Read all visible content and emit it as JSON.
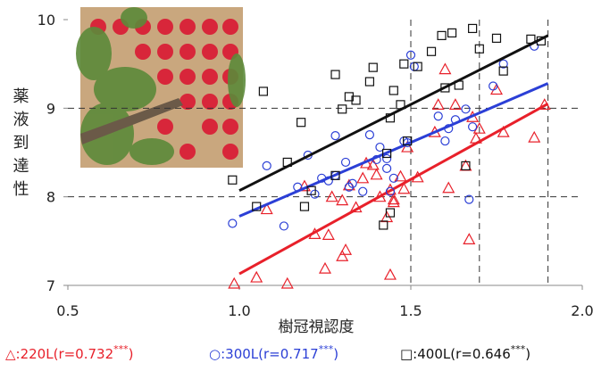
{
  "chart_data": {
    "type": "scatter",
    "x_label": "樹冠視認度",
    "y_label": "薬液到達性",
    "xlim": [
      0.5,
      2.0
    ],
    "xticks": [
      {
        "value": 0.5,
        "label": "0.5"
      },
      {
        "value": 1,
        "label": "1.0"
      },
      {
        "value": 1.5,
        "label": "1.5"
      },
      {
        "value": 2,
        "label": "2.0"
      }
    ],
    "ylim": [
      7,
      10
    ],
    "yticks": [
      7,
      8,
      9,
      10
    ],
    "ref_x": [
      1.5,
      1.7,
      1.9
    ],
    "ref_y": [
      8,
      9
    ],
    "series": [
      {
        "name": "220L",
        "marker": "triangle",
        "color": "#e8202a",
        "legend_symbol": "△:",
        "stat_label": "(r=0.732",
        "significance": "***",
        "close": ")",
        "fit": {
          "x": [
            1.0,
            1.9
          ],
          "values": [
            7.13,
            9.05
          ]
        },
        "x": [
          0.985,
          1.05,
          1.08,
          1.14,
          1.19,
          1.22,
          1.26,
          1.25,
          1.3,
          1.31,
          1.27,
          1.3,
          1.32,
          1.34,
          1.36,
          1.37,
          1.39,
          1.4,
          1.41,
          1.43,
          1.44,
          1.44,
          1.45,
          1.45,
          1.47,
          1.48,
          1.49,
          1.52,
          1.57,
          1.58,
          1.6,
          1.61,
          1.63,
          1.66,
          1.67,
          1.68,
          1.69,
          1.7,
          1.75,
          1.77,
          1.86,
          1.89
        ],
        "values": [
          7.02,
          7.09,
          7.86,
          7.02,
          8.12,
          7.58,
          7.57,
          7.19,
          7.33,
          7.4,
          8.0,
          7.96,
          8.13,
          7.88,
          8.21,
          8.38,
          8.36,
          8.25,
          8.0,
          7.77,
          8.08,
          7.12,
          7.94,
          7.97,
          8.23,
          8.09,
          8.56,
          8.22,
          8.73,
          9.04,
          9.44,
          8.1,
          9.04,
          8.35,
          7.52,
          8.9,
          8.66,
          8.77,
          9.21,
          8.73,
          8.67,
          9.04
        ]
      },
      {
        "name": "300L",
        "marker": "circle",
        "color": "#2b3fd6",
        "legend_symbol": "○:",
        "stat_label": "(r=0.717",
        "significance": "***",
        "close": ")",
        "fit": {
          "x": [
            1.0,
            1.9
          ],
          "values": [
            7.78,
            9.28
          ]
        },
        "x": [
          0.98,
          1.08,
          1.13,
          1.17,
          1.2,
          1.22,
          1.24,
          1.26,
          1.28,
          1.28,
          1.31,
          1.32,
          1.33,
          1.36,
          1.38,
          1.4,
          1.41,
          1.43,
          1.43,
          1.44,
          1.45,
          1.48,
          1.49,
          1.5,
          1.51,
          1.58,
          1.6,
          1.61,
          1.63,
          1.66,
          1.67,
          1.68,
          1.74,
          1.77,
          1.86
        ],
        "values": [
          7.7,
          8.35,
          7.67,
          8.11,
          8.47,
          8.03,
          8.21,
          8.18,
          8.24,
          8.69,
          8.39,
          8.11,
          8.15,
          8.06,
          8.7,
          8.42,
          8.56,
          8.32,
          8.43,
          8.06,
          8.21,
          8.63,
          8.61,
          9.6,
          9.47,
          8.91,
          8.63,
          8.77,
          8.87,
          8.99,
          7.97,
          8.79,
          9.25,
          9.5,
          9.7
        ]
      },
      {
        "name": "400L",
        "marker": "square",
        "color": "#111111",
        "legend_symbol": "□:",
        "stat_label": "(r=0.646",
        "significance": "***",
        "close": ")",
        "fit": {
          "x": [
            1.0,
            1.9
          ],
          "values": [
            8.07,
            9.82
          ]
        },
        "x": [
          0.98,
          1.05,
          1.07,
          1.14,
          1.18,
          1.19,
          1.21,
          1.28,
          1.28,
          1.3,
          1.32,
          1.34,
          1.38,
          1.39,
          1.42,
          1.43,
          1.44,
          1.44,
          1.45,
          1.47,
          1.48,
          1.49,
          1.52,
          1.56,
          1.59,
          1.6,
          1.62,
          1.64,
          1.66,
          1.68,
          1.7,
          1.75,
          1.77,
          1.85,
          1.88
        ],
        "values": [
          8.19,
          7.89,
          9.19,
          8.39,
          8.84,
          7.89,
          8.07,
          9.38,
          8.24,
          8.99,
          9.13,
          9.09,
          9.3,
          9.46,
          7.68,
          8.49,
          8.89,
          7.82,
          9.2,
          9.04,
          9.5,
          8.63,
          9.47,
          9.64,
          9.82,
          9.23,
          9.85,
          9.26,
          8.35,
          9.9,
          9.67,
          9.79,
          9.42,
          9.78,
          9.76
        ]
      }
    ]
  }
}
